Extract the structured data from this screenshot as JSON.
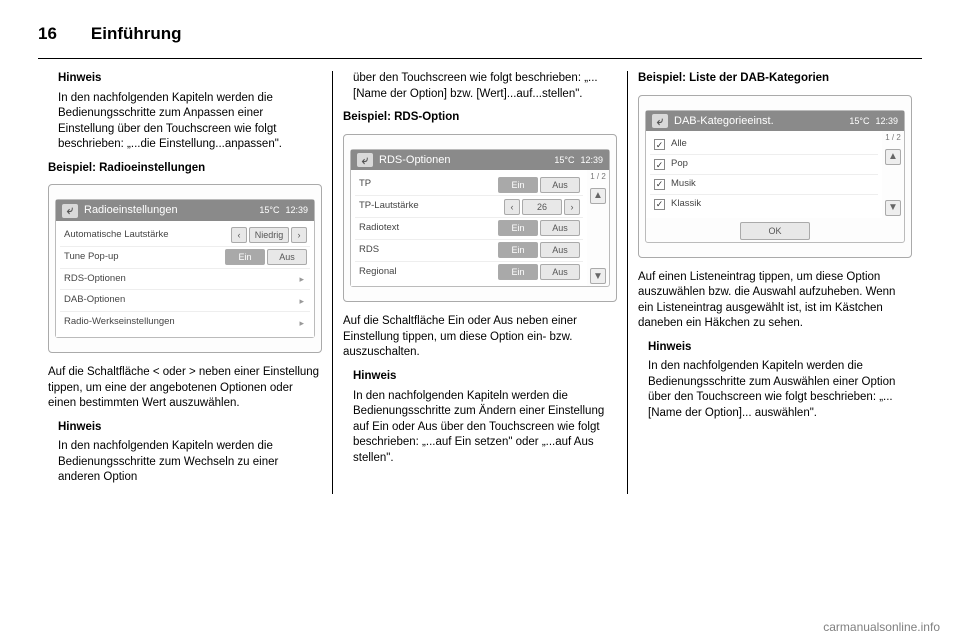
{
  "page_number": "16",
  "chapter_title": "Einführung",
  "watermark": "carmanualsonline.info",
  "col1": {
    "hinweis1_title": "Hinweis",
    "hinweis1_body": "In den nachfolgenden Kapiteln werden die Bedienungsschritte zum Anpassen einer Einstellung über den Touchscreen wie folgt beschrieben: „...die Einstellung...anpassen\".",
    "example_title": "Beispiel: Radioeinstellungen",
    "after_panel": "Auf die Schaltfläche < oder > neben einer Einstellung tippen, um eine der angebotenen Optionen oder einen bestimmten Wert auszuwählen.",
    "hinweis2_title": "Hinweis",
    "hinweis2_body": "In den nachfolgenden Kapiteln werden die Bedienungsschritte zum Wechseln zu einer anderen Option"
  },
  "col2": {
    "intro": "über den Touchscreen wie folgt beschrieben: „...[Name der Option] bzw. [Wert]...auf...stellen\".",
    "example_title": "Beispiel: RDS-Option",
    "after_panel": "Auf die Schaltfläche Ein oder Aus neben einer Einstellung tippen, um diese Option ein- bzw. auszuschalten.",
    "hinweis_title": "Hinweis",
    "hinweis_body": "In den nachfolgenden Kapiteln werden die Bedienungsschritte zum Ändern einer Einstellung auf Ein oder Aus über den Touchscreen wie folgt beschrieben: „...auf Ein setzen\" oder „...auf Aus stellen\"."
  },
  "col3": {
    "example_title": "Beispiel: Liste der DAB-Kategorien",
    "after_panel": "Auf einen Listeneintrag tippen, um diese Option auszuwählen bzw. die Auswahl aufzuheben. Wenn ein Listeneintrag ausgewählt ist, ist im Kästchen daneben ein Häkchen zu sehen.",
    "hinweis_title": "Hinweis",
    "hinweis_body": "In den nachfolgenden Kapiteln werden die Bedienungsschritte zum Auswählen einer Option über den Touchscreen wie folgt beschrieben: „...[Name der Option]... auswählen\"."
  },
  "panel_radio": {
    "title": "Radioeinstellungen",
    "temp": "15°C",
    "time": "12:39",
    "rows": {
      "r1": {
        "label": "Automatische Lautstärke",
        "mid": "Niedrig"
      },
      "r2": {
        "label": "Tune Pop-up",
        "on": "Ein",
        "off": "Aus"
      },
      "r3": {
        "label": "RDS-Optionen"
      },
      "r4": {
        "label": "DAB-Optionen"
      },
      "r5": {
        "label": "Radio-Werkseinstellungen"
      }
    }
  },
  "panel_rds": {
    "title": "RDS-Optionen",
    "temp": "15°C",
    "time": "12:39",
    "page": "1 / 2",
    "rows": {
      "r1": {
        "label": "TP",
        "on": "Ein",
        "off": "Aus"
      },
      "r2": {
        "label": "TP-Lautstärke",
        "val": "26"
      },
      "r3": {
        "label": "Radiotext",
        "on": "Ein",
        "off": "Aus"
      },
      "r4": {
        "label": "RDS",
        "on": "Ein",
        "off": "Aus"
      },
      "r5": {
        "label": "Regional",
        "on": "Ein",
        "off": "Aus"
      }
    }
  },
  "panel_dab": {
    "title": "DAB-Kategorieeinst.",
    "temp": "15°C",
    "time": "12:39",
    "page": "1 / 2",
    "items": {
      "i1": "Alle",
      "i2": "Pop",
      "i3": "Musik",
      "i4": "Klassik"
    },
    "ok": "OK"
  }
}
